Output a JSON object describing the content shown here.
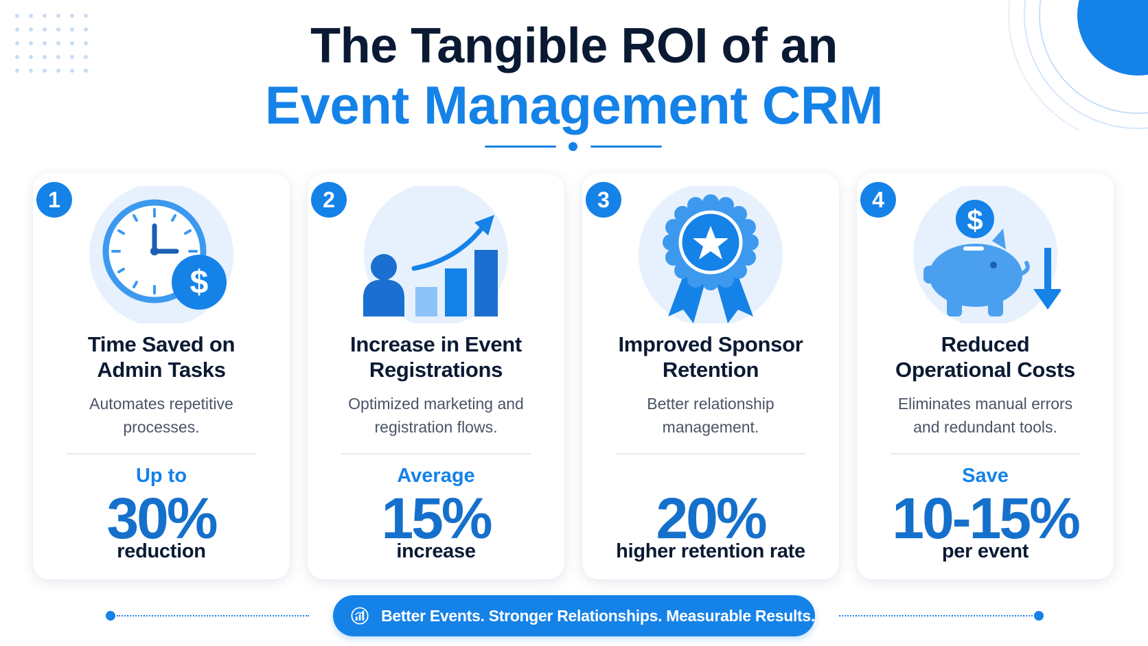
{
  "title": {
    "line1": "The Tangible ROI of an",
    "line2": "Event Management CRM"
  },
  "colors": {
    "accent": "#1582e8",
    "accent_dark": "#1570cc",
    "title_dark": "#0b1a33",
    "icon_light": "#e6f1fd"
  },
  "cards": [
    {
      "number": "1",
      "icon": "clock-dollar-icon",
      "title_line1": "Time Saved on",
      "title_line2": "Admin Tasks",
      "desc_line1": "Automates repetitive",
      "desc_line2": "processes.",
      "stat_prefix": "Up to",
      "stat_value": "30%",
      "stat_suffix": "reduction"
    },
    {
      "number": "2",
      "icon": "growth-chart-icon",
      "title_line1": "Increase in Event",
      "title_line2": "Registrations",
      "desc_line1": "Optimized marketing and",
      "desc_line2": "registration flows.",
      "stat_prefix": "Average",
      "stat_value": "15%",
      "stat_suffix": "increase"
    },
    {
      "number": "3",
      "icon": "award-ribbon-icon",
      "title_line1": "Improved Sponsor",
      "title_line2": "Retention",
      "desc_line1": "Better relationship",
      "desc_line2": "management.",
      "stat_prefix": "",
      "stat_value": "20%",
      "stat_suffix": "higher retention rate"
    },
    {
      "number": "4",
      "icon": "piggy-bank-icon",
      "title_line1": "Reduced",
      "title_line2": "Operational Costs",
      "desc_line1": "Eliminates manual errors",
      "desc_line2": "and redundant tools.",
      "stat_prefix": "Save",
      "stat_value": "10-15%",
      "stat_suffix": "per event"
    }
  ],
  "footer": {
    "icon": "bar-chart-icon",
    "tagline": "Better Events. Stronger Relationships. Measurable Results."
  }
}
